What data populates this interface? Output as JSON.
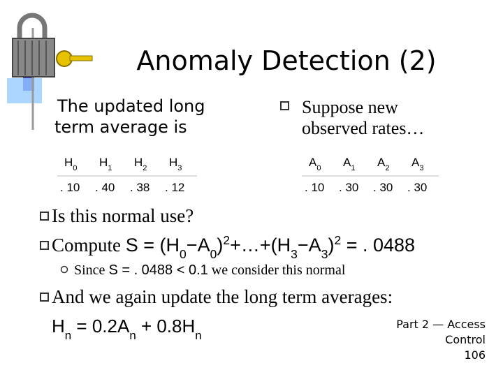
{
  "title": "Anomaly Detection (2)",
  "left_heading": [
    "The updated long",
    "term average is"
  ],
  "right_heading": [
    "Suppose new",
    "observed rates…"
  ],
  "tables": [
    {
      "header": [
        [
          {
            "t": "H"
          },
          {
            "t": "0",
            "k": "sub"
          }
        ],
        [
          {
            "t": "H"
          },
          {
            "t": "1",
            "k": "sub"
          }
        ],
        [
          {
            "t": "H"
          },
          {
            "t": "2",
            "k": "sub"
          }
        ],
        [
          {
            "t": "H"
          },
          {
            "t": "3",
            "k": "sub"
          }
        ]
      ],
      "row": [
        ". 10",
        ". 40",
        ". 38",
        ". 12"
      ]
    },
    {
      "header": [
        [
          {
            "t": "A"
          },
          {
            "t": "0",
            "k": "sub"
          }
        ],
        [
          {
            "t": "A"
          },
          {
            "t": "1",
            "k": "sub"
          }
        ],
        [
          {
            "t": "A"
          },
          {
            "t": "2",
            "k": "sub"
          }
        ],
        [
          {
            "t": "A"
          },
          {
            "t": "3",
            "k": "sub"
          }
        ]
      ],
      "row": [
        ". 10",
        ". 30",
        ". 30",
        ". 30"
      ]
    }
  ],
  "bullets": [
    [
      {
        "t": "Is this normal use?"
      }
    ],
    [
      {
        "t": "Compute "
      },
      {
        "t": "S = (H",
        "f": "sans"
      },
      {
        "t": "0",
        "k": "sub",
        "f": "sans"
      },
      {
        "t": "−A",
        "f": "sans"
      },
      {
        "t": "0",
        "k": "sub",
        "f": "sans"
      },
      {
        "t": ")",
        "f": "sans"
      },
      {
        "t": "2",
        "k": "sup",
        "f": "sans"
      },
      {
        "t": "+…+(H",
        "f": "sans"
      },
      {
        "t": "3",
        "k": "sub",
        "f": "sans"
      },
      {
        "t": "−A",
        "f": "sans"
      },
      {
        "t": "3",
        "k": "sub",
        "f": "sans"
      },
      {
        "t": ")",
        "f": "sans"
      },
      {
        "t": "2",
        "k": "sup",
        "f": "sans"
      },
      {
        "t": " = . 0488",
        "f": "sans"
      }
    ],
    [
      {
        "t": "And we again update the long term averages:"
      }
    ]
  ],
  "sub_bullet": [
    {
      "t": "Since "
    },
    {
      "t": "S = . 0488 < 0.1",
      "f": "sans"
    },
    {
      "t": " we consider this normal"
    }
  ],
  "formula": [
    {
      "t": "H",
      "f": "sans"
    },
    {
      "t": "n",
      "k": "sub",
      "f": "sans"
    },
    {
      "t": " = 0.2A",
      "f": "sans"
    },
    {
      "t": "n",
      "k": "sub",
      "f": "sans"
    },
    {
      "t": " + 0.8H",
      "f": "sans"
    },
    {
      "t": "n",
      "k": "sub",
      "f": "sans"
    }
  ],
  "footer": [
    "Part 2 — Access",
    "Control",
    "106"
  ]
}
